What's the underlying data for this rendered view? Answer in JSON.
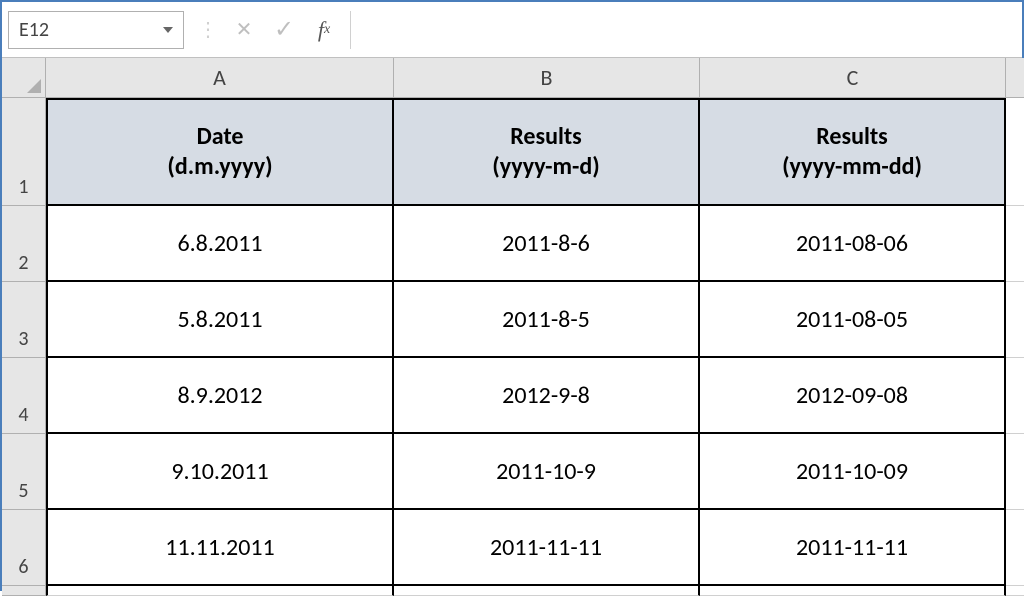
{
  "name_box": {
    "value": "E12"
  },
  "formula_bar": {
    "value": ""
  },
  "columns": [
    "A",
    "B",
    "C"
  ],
  "row_numbers": [
    1,
    2,
    3,
    4,
    5,
    6
  ],
  "table": {
    "type": "table",
    "header_bg": "#d6dce4",
    "border_color": "#000000",
    "cell_bg": "#ffffff",
    "font_size_header": 24,
    "font_size_cell": 24,
    "headers": [
      "Date\n(d.m.yyyy)",
      "Results\n(yyyy-m-d)",
      "Results\n(yyyy-mm-dd)"
    ],
    "rows": [
      [
        "6.8.2011",
        "2011-8-6",
        "2011-08-06"
      ],
      [
        "5.8.2011",
        "2011-8-5",
        "2011-08-05"
      ],
      [
        "8.9.2012",
        "2012-9-8",
        "2012-09-08"
      ],
      [
        "9.10.2011",
        "2011-10-9",
        "2011-10-09"
      ],
      [
        "11.11.2011",
        "2011-11-11",
        "2011-11-11"
      ]
    ]
  }
}
